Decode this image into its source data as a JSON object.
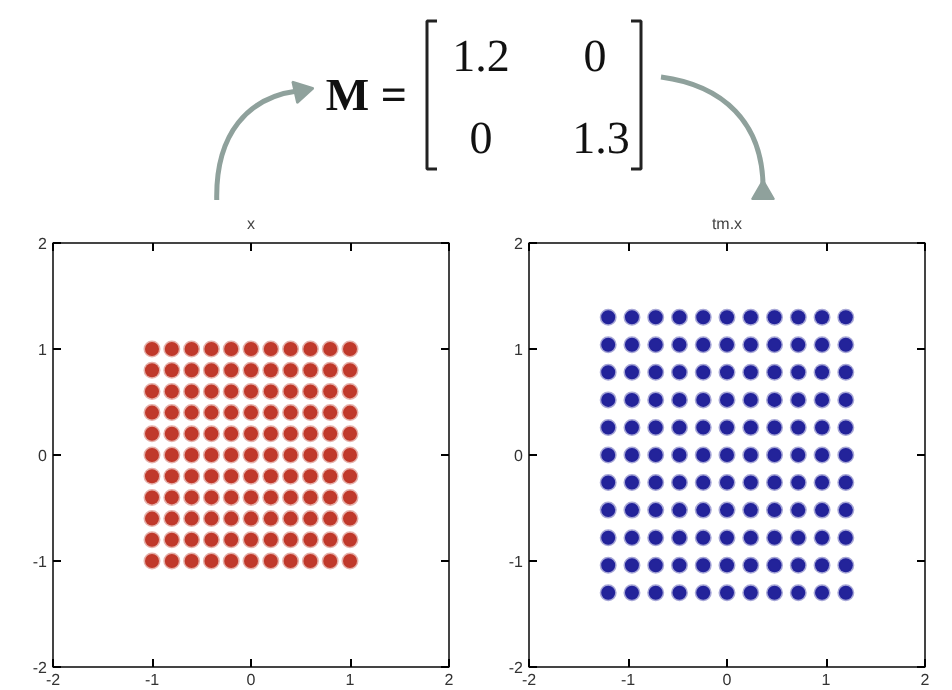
{
  "chart_data": [
    {
      "type": "scatter",
      "title": "x",
      "annotations": [
        "M =",
        "1.2",
        "0",
        "0",
        "1.3"
      ],
      "xlim": [
        -2,
        2
      ],
      "ylim": [
        -2,
        2
      ],
      "xticks": [
        -2,
        -1,
        0,
        1,
        2
      ],
      "yticks": [
        -2,
        -1,
        0,
        1,
        2
      ],
      "marker": "circle",
      "grid": false,
      "series": [
        {
          "color": "#c0392b",
          "x": [
            -1,
            -0.8,
            -0.6,
            -0.4,
            -0.2,
            0,
            0.2,
            0.4,
            0.6,
            0.8,
            1,
            -1,
            -0.8,
            -0.6,
            -0.4,
            -0.2,
            0,
            0.2,
            0.4,
            0.6,
            0.8,
            1,
            -1,
            -0.8,
            -0.6,
            -0.4,
            -0.2,
            0,
            0.2,
            0.4,
            0.6,
            0.8,
            1,
            -1,
            -0.8,
            -0.6,
            -0.4,
            -0.2,
            0,
            0.2,
            0.4,
            0.6,
            0.8,
            1,
            -1,
            -0.8,
            -0.6,
            -0.4,
            -0.2,
            0,
            0.2,
            0.4,
            0.6,
            0.8,
            1,
            -1,
            -0.8,
            -0.6,
            -0.4,
            -0.2,
            0,
            0.2,
            0.4,
            0.6,
            0.8,
            1,
            -1,
            -0.8,
            -0.6,
            -0.4,
            -0.2,
            0,
            0.2,
            0.4,
            0.6,
            0.8,
            1,
            -1,
            -0.8,
            -0.6,
            -0.4,
            -0.2,
            0,
            0.2,
            0.4,
            0.6,
            0.8,
            1,
            -1,
            -0.8,
            -0.6,
            -0.4,
            -0.2,
            0,
            0.2,
            0.4,
            0.6,
            0.8,
            1,
            -1,
            -0.8,
            -0.6,
            -0.4,
            -0.2,
            0,
            0.2,
            0.4,
            0.6,
            0.8,
            1,
            -1,
            -0.8,
            -0.6,
            -0.4,
            -0.2,
            0,
            0.2,
            0.4,
            0.6,
            0.8,
            1
          ],
          "values": [
            -1,
            -1,
            -1,
            -1,
            -1,
            -1,
            -1,
            -1,
            -1,
            -1,
            -1,
            -0.8,
            -0.8,
            -0.8,
            -0.8,
            -0.8,
            -0.8,
            -0.8,
            -0.8,
            -0.8,
            -0.8,
            -0.8,
            -0.6,
            -0.6,
            -0.6,
            -0.6,
            -0.6,
            -0.6,
            -0.6,
            -0.6,
            -0.6,
            -0.6,
            -0.6,
            -0.4,
            -0.4,
            -0.4,
            -0.4,
            -0.4,
            -0.4,
            -0.4,
            -0.4,
            -0.4,
            -0.4,
            -0.4,
            -0.2,
            -0.2,
            -0.2,
            -0.2,
            -0.2,
            -0.2,
            -0.2,
            -0.2,
            -0.2,
            -0.2,
            -0.2,
            0,
            0,
            0,
            0,
            0,
            0,
            0,
            0,
            0,
            0,
            0,
            0.2,
            0.2,
            0.2,
            0.2,
            0.2,
            0.2,
            0.2,
            0.2,
            0.2,
            0.2,
            0.2,
            0.4,
            0.4,
            0.4,
            0.4,
            0.4,
            0.4,
            0.4,
            0.4,
            0.4,
            0.4,
            0.4,
            0.6,
            0.6,
            0.6,
            0.6,
            0.6,
            0.6,
            0.6,
            0.6,
            0.6,
            0.6,
            0.6,
            0.8,
            0.8,
            0.8,
            0.8,
            0.8,
            0.8,
            0.8,
            0.8,
            0.8,
            0.8,
            0.8,
            1,
            1,
            1,
            1,
            1,
            1,
            1,
            1,
            1,
            1,
            1
          ]
        }
      ]
    },
    {
      "type": "scatter",
      "title": "tm.x",
      "xlim": [
        -2,
        2
      ],
      "ylim": [
        -2,
        2
      ],
      "xticks": [
        -2,
        -1,
        0,
        1,
        2
      ],
      "yticks": [
        -2,
        -1,
        0,
        1,
        2
      ],
      "marker": "circle",
      "grid": false,
      "series": [
        {
          "color": "#23239a",
          "x": [
            -1.2,
            -0.96,
            -0.72,
            -0.48,
            -0.24,
            0,
            0.24,
            0.48,
            0.72,
            0.96,
            1.2,
            -1.2,
            -0.96,
            -0.72,
            -0.48,
            -0.24,
            0,
            0.24,
            0.48,
            0.72,
            0.96,
            1.2,
            -1.2,
            -0.96,
            -0.72,
            -0.48,
            -0.24,
            0,
            0.24,
            0.48,
            0.72,
            0.96,
            1.2,
            -1.2,
            -0.96,
            -0.72,
            -0.48,
            -0.24,
            0,
            0.24,
            0.48,
            0.72,
            0.96,
            1.2,
            -1.2,
            -0.96,
            -0.72,
            -0.48,
            -0.24,
            0,
            0.24,
            0.48,
            0.72,
            0.96,
            1.2,
            -1.2,
            -0.96,
            -0.72,
            -0.48,
            -0.24,
            0,
            0.24,
            0.48,
            0.72,
            0.96,
            1.2,
            -1.2,
            -0.96,
            -0.72,
            -0.48,
            -0.24,
            0,
            0.24,
            0.48,
            0.72,
            0.96,
            1.2,
            -1.2,
            -0.96,
            -0.72,
            -0.48,
            -0.24,
            0,
            0.24,
            0.48,
            0.72,
            0.96,
            1.2,
            -1.2,
            -0.96,
            -0.72,
            -0.48,
            -0.24,
            0,
            0.24,
            0.48,
            0.72,
            0.96,
            1.2,
            -1.2,
            -0.96,
            -0.72,
            -0.48,
            -0.24,
            0,
            0.24,
            0.48,
            0.72,
            0.96,
            1.2,
            -1.2,
            -0.96,
            -0.72,
            -0.48,
            -0.24,
            0,
            0.24,
            0.48,
            0.72,
            0.96,
            1.2
          ],
          "values": [
            -1.3,
            -1.3,
            -1.3,
            -1.3,
            -1.3,
            -1.3,
            -1.3,
            -1.3,
            -1.3,
            -1.3,
            -1.3,
            -1.04,
            -1.04,
            -1.04,
            -1.04,
            -1.04,
            -1.04,
            -1.04,
            -1.04,
            -1.04,
            -1.04,
            -1.04,
            -0.78,
            -0.78,
            -0.78,
            -0.78,
            -0.78,
            -0.78,
            -0.78,
            -0.78,
            -0.78,
            -0.78,
            -0.78,
            -0.52,
            -0.52,
            -0.52,
            -0.52,
            -0.52,
            -0.52,
            -0.52,
            -0.52,
            -0.52,
            -0.52,
            -0.52,
            -0.26,
            -0.26,
            -0.26,
            -0.26,
            -0.26,
            -0.26,
            -0.26,
            -0.26,
            -0.26,
            -0.26,
            -0.26,
            0,
            0,
            0,
            0,
            0,
            0,
            0,
            0,
            0,
            0,
            0,
            0.26,
            0.26,
            0.26,
            0.26,
            0.26,
            0.26,
            0.26,
            0.26,
            0.26,
            0.26,
            0.26,
            0.52,
            0.52,
            0.52,
            0.52,
            0.52,
            0.52,
            0.52,
            0.52,
            0.52,
            0.52,
            0.52,
            0.78,
            0.78,
            0.78,
            0.78,
            0.78,
            0.78,
            0.78,
            0.78,
            0.78,
            0.78,
            0.78,
            1.04,
            1.04,
            1.04,
            1.04,
            1.04,
            1.04,
            1.04,
            1.04,
            1.04,
            1.04,
            1.04,
            1.3,
            1.3,
            1.3,
            1.3,
            1.3,
            1.3,
            1.3,
            1.3,
            1.3,
            1.3,
            1.3
          ]
        }
      ]
    }
  ]
}
